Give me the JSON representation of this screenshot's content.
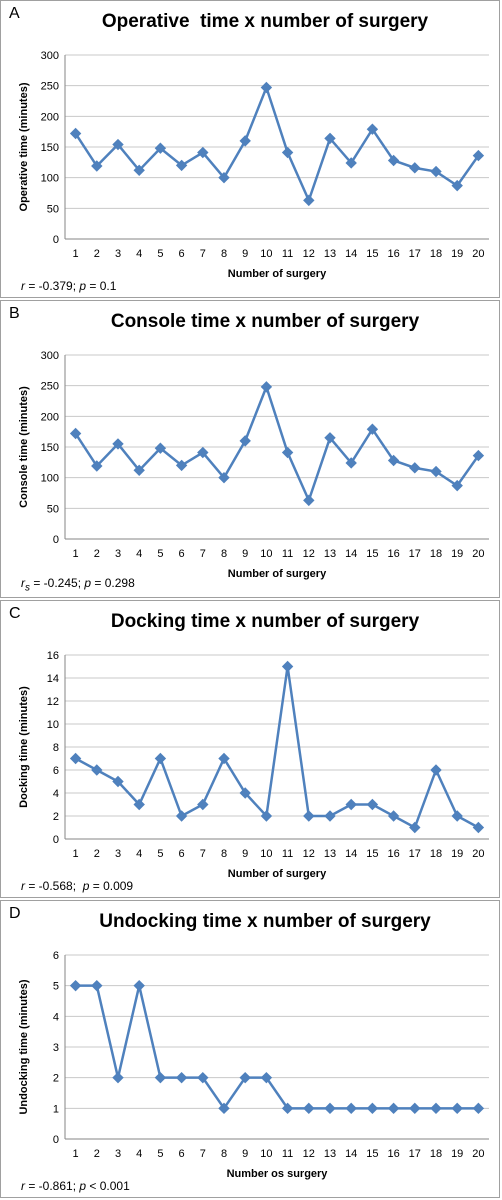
{
  "chart_data": [
    {
      "type": "line",
      "panel_letter": "A",
      "title": "Operative  time x number of surgery",
      "xlabel": "Number of surgery",
      "ylabel": "Operative time (minutes)",
      "categories": [
        "1",
        "2",
        "3",
        "4",
        "5",
        "6",
        "7",
        "8",
        "9",
        "10",
        "11",
        "12",
        "13",
        "14",
        "15",
        "16",
        "17",
        "18",
        "19",
        "20"
      ],
      "series": [
        {
          "values": [
            172,
            119,
            154,
            112,
            148,
            120,
            141,
            100,
            160,
            247,
            141,
            63,
            164,
            124,
            179,
            128,
            116,
            110,
            87,
            136
          ]
        }
      ],
      "ylim": [
        0,
        300
      ],
      "yticks": [
        0,
        50,
        100,
        150,
        200,
        250,
        300
      ],
      "grid": true,
      "color": "#4f81bd",
      "stats": {
        "prefix": "r",
        "subscript": "",
        "text": " = -0.379; ",
        "p_symbol": "p",
        "p_text": " = 0.1"
      }
    },
    {
      "type": "line",
      "panel_letter": "B",
      "title": "Console time x number of surgery",
      "xlabel": "Number of surgery",
      "ylabel": "Console time (minutes)",
      "categories": [
        "1",
        "2",
        "3",
        "4",
        "5",
        "6",
        "7",
        "8",
        "9",
        "10",
        "11",
        "12",
        "13",
        "14",
        "15",
        "16",
        "17",
        "18",
        "19",
        "20"
      ],
      "series": [
        {
          "values": [
            172,
            119,
            155,
            112,
            148,
            120,
            141,
            100,
            160,
            248,
            141,
            63,
            165,
            124,
            179,
            128,
            116,
            110,
            87,
            136
          ]
        }
      ],
      "ylim": [
        0,
        300
      ],
      "yticks": [
        0,
        50,
        100,
        150,
        200,
        250,
        300
      ],
      "grid": true,
      "color": "#4f81bd",
      "stats": {
        "prefix": "r",
        "subscript": "s",
        "text": " = -0.245; ",
        "p_symbol": "p",
        "p_text": " = 0.298"
      }
    },
    {
      "type": "line",
      "panel_letter": "C",
      "title": "Docking time x number of surgery",
      "xlabel": "Number of surgery",
      "ylabel": "Docking time (minutes)",
      "categories": [
        "1",
        "2",
        "3",
        "4",
        "5",
        "6",
        "7",
        "8",
        "9",
        "10",
        "11",
        "12",
        "13",
        "14",
        "15",
        "16",
        "17",
        "18",
        "19",
        "20"
      ],
      "series": [
        {
          "values": [
            7,
            6,
            5,
            3,
            7,
            2,
            3,
            7,
            4,
            2,
            15,
            2,
            2,
            3,
            3,
            2,
            1,
            6,
            2,
            1
          ]
        }
      ],
      "ylim": [
        0,
        16
      ],
      "yticks": [
        0,
        2,
        4,
        6,
        8,
        10,
        12,
        14,
        16
      ],
      "grid": true,
      "color": "#4f81bd",
      "stats": {
        "prefix": "r",
        "subscript": "",
        "text": " = -0.568;  ",
        "p_symbol": "p",
        "p_text": " = 0.009"
      }
    },
    {
      "type": "line",
      "panel_letter": "D",
      "title": "Undocking time x number of surgery",
      "xlabel": "Number os surgery",
      "ylabel": "Undocking time (minutes)",
      "categories": [
        "1",
        "2",
        "3",
        "4",
        "5",
        "6",
        "7",
        "8",
        "9",
        "10",
        "11",
        "12",
        "13",
        "14",
        "15",
        "16",
        "17",
        "18",
        "19",
        "20"
      ],
      "series": [
        {
          "values": [
            5,
            5,
            2,
            5,
            2,
            2,
            2,
            1,
            2,
            2,
            1,
            1,
            1,
            1,
            1,
            1,
            1,
            1,
            1,
            1
          ]
        }
      ],
      "ylim": [
        0,
        6
      ],
      "yticks": [
        0,
        1,
        2,
        3,
        4,
        5,
        6
      ],
      "grid": true,
      "color": "#4f81bd",
      "stats": {
        "prefix": "r",
        "subscript": "",
        "text": " = -0.861; ",
        "p_symbol": "p",
        "p_text": " < 0.001"
      }
    }
  ]
}
